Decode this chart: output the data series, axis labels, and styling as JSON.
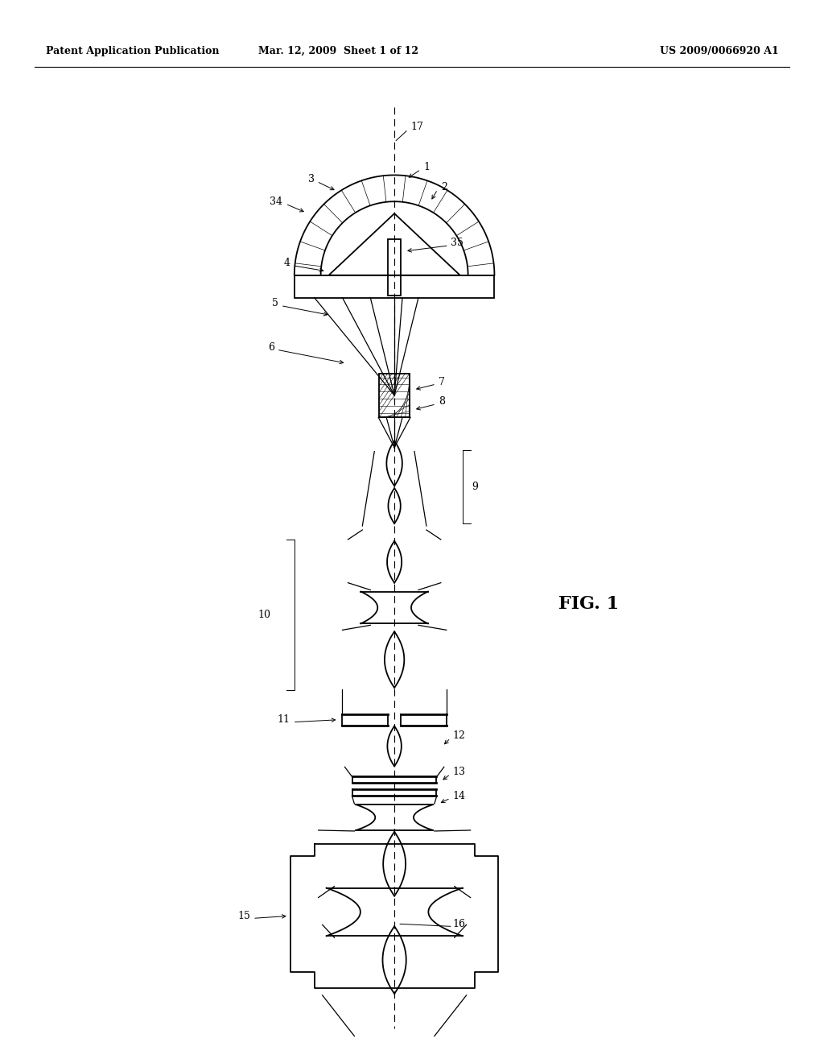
{
  "title_left": "Patent Application Publication",
  "title_mid": "Mar. 12, 2009  Sheet 1 of 12",
  "title_right": "US 2009/0066920 A1",
  "fig_label": "FIG. 1",
  "bg_color": "#ffffff",
  "line_color": "#000000",
  "fig_width": 10.24,
  "fig_height": 13.2,
  "dpi": 100
}
